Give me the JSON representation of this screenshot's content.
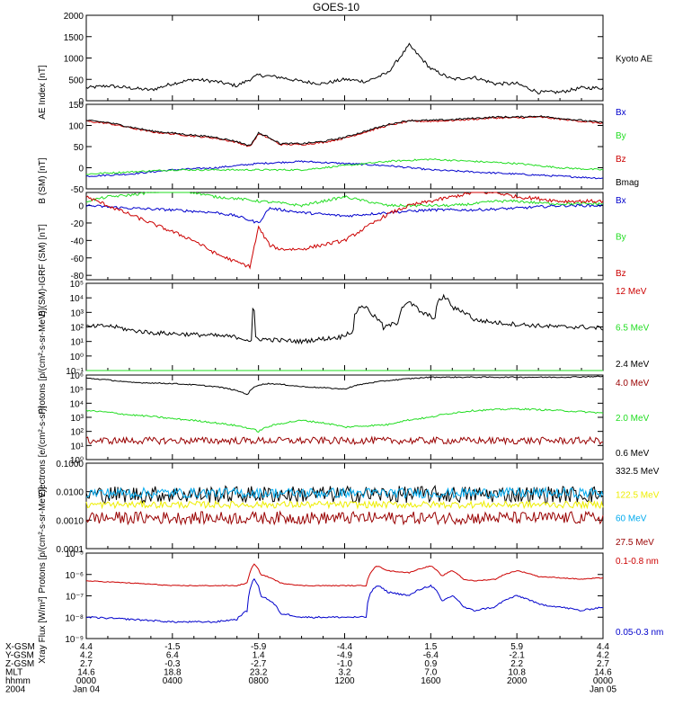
{
  "title": "GOES-10",
  "x_axis": {
    "range_hours": [
      0,
      24
    ],
    "ticks": [
      0,
      4,
      8,
      12,
      16,
      20,
      24
    ],
    "rows": [
      {
        "label": "X-GSM",
        "values": [
          "4.4",
          "-1.5",
          "-5.9",
          "-4.4",
          "1.5",
          "5.9",
          "4.4"
        ]
      },
      {
        "label": "Y-GSM",
        "values": [
          "4.2",
          "6.4",
          "1.4",
          "-4.9",
          "-6.4",
          "-2.1",
          "4.2"
        ]
      },
      {
        "label": "Z-GSM",
        "values": [
          "2.7",
          "-0.3",
          "-2.7",
          "-1.0",
          "0.9",
          "2.2",
          "2.7"
        ]
      },
      {
        "label": "MLT",
        "values": [
          "14.6",
          "18.8",
          "23.2",
          "3.2",
          "7.0",
          "10.8",
          "14.6"
        ]
      },
      {
        "label": "hhmm",
        "values": [
          "0000",
          "0400",
          "0800",
          "1200",
          "1600",
          "2000",
          "0000"
        ]
      },
      {
        "label": "2004",
        "values": [
          "Jan 04",
          "",
          "",
          "",
          "",
          "",
          "Jan 05"
        ]
      }
    ]
  },
  "colors": {
    "black": "#000000",
    "red": "#cc0000",
    "green": "#22dd22",
    "blue": "#0000cc",
    "darkred": "#990000",
    "cyan": "#00aaee",
    "yellow": "#eeee00"
  },
  "chart_data": [
    {
      "type": "line",
      "ylabel": "AE Index [nT]",
      "ylim": [
        0,
        2000
      ],
      "yticks": [
        0,
        500,
        1000,
        1500,
        2000
      ],
      "yticklabels": [
        "0",
        "500",
        "1000",
        "1500",
        "2000"
      ],
      "series": [
        {
          "name": "Kyoto AE",
          "color": "#000000",
          "noise": 40,
          "x": [
            0,
            1,
            2,
            3,
            4,
            5,
            6,
            7,
            8,
            9,
            10,
            11,
            12,
            13,
            14,
            15,
            16,
            17,
            18,
            19,
            20,
            21,
            22,
            23,
            24
          ],
          "values": [
            300,
            350,
            300,
            250,
            400,
            500,
            450,
            350,
            600,
            550,
            450,
            400,
            500,
            450,
            650,
            1300,
            750,
            500,
            550,
            400,
            400,
            200,
            200,
            300,
            300
          ]
        }
      ]
    },
    {
      "type": "line",
      "ylabel": "B (SM) [nT]",
      "ylim": [
        -50,
        150
      ],
      "yticks": [
        -50,
        0,
        50,
        100,
        150
      ],
      "yticklabels": [
        "-50",
        "0",
        "50",
        "100",
        "150"
      ],
      "series": [
        {
          "name": "Bx",
          "color": "#0000cc",
          "noise": 2,
          "x": [
            0,
            2,
            4,
            6,
            8,
            10,
            12,
            14,
            16,
            18,
            20,
            22,
            24
          ],
          "values": [
            -20,
            -15,
            -5,
            0,
            10,
            15,
            10,
            5,
            -5,
            -10,
            -15,
            -20,
            -25
          ]
        },
        {
          "name": "By",
          "color": "#22dd22",
          "noise": 2,
          "x": [
            0,
            2,
            4,
            6,
            8,
            10,
            12,
            14,
            16,
            18,
            20,
            22,
            24
          ],
          "values": [
            -15,
            -10,
            -5,
            -5,
            -5,
            -5,
            5,
            15,
            20,
            15,
            10,
            0,
            -5
          ]
        },
        {
          "name": "Bz",
          "color": "#cc0000",
          "noise": 2,
          "x": [
            0,
            1,
            2,
            3,
            4,
            5,
            6,
            7,
            7.6,
            8,
            8.5,
            9,
            10,
            11,
            12,
            13,
            14,
            15,
            16,
            17,
            18,
            19,
            20,
            21,
            22,
            23,
            24
          ],
          "values": [
            110,
            105,
            95,
            85,
            80,
            75,
            70,
            60,
            50,
            80,
            70,
            55,
            55,
            60,
            70,
            85,
            100,
            110,
            110,
            112,
            115,
            118,
            118,
            120,
            115,
            110,
            105
          ]
        },
        {
          "name": "Bmag",
          "color": "#000000",
          "noise": 2,
          "x": [
            0,
            1,
            2,
            3,
            4,
            5,
            6,
            7,
            7.6,
            8,
            8.5,
            9,
            10,
            11,
            12,
            13,
            14,
            15,
            16,
            17,
            18,
            19,
            20,
            21,
            22,
            23,
            24
          ],
          "values": [
            112,
            107,
            97,
            87,
            82,
            77,
            72,
            62,
            52,
            82,
            72,
            57,
            57,
            62,
            72,
            87,
            102,
            112,
            112,
            114,
            117,
            120,
            120,
            122,
            117,
            112,
            107
          ]
        }
      ]
    },
    {
      "type": "line",
      "ylabel": "B (SM)-IGRF (SM) [nT]",
      "ylim": [
        -85,
        15
      ],
      "yticks": [
        -80,
        -60,
        -40,
        -20,
        0
      ],
      "yticklabels": [
        "-80",
        "-60",
        "-40",
        "-20",
        "0"
      ],
      "series": [
        {
          "name": "Bx",
          "color": "#0000cc",
          "noise": 1.5,
          "x": [
            0,
            2,
            4,
            6,
            7,
            8,
            8.5,
            10,
            12,
            14,
            16,
            18,
            20,
            22,
            24
          ],
          "values": [
            0,
            -3,
            -5,
            -8,
            -12,
            -20,
            -3,
            -8,
            -12,
            -8,
            -5,
            -5,
            -3,
            0,
            0
          ]
        },
        {
          "name": "By",
          "color": "#22dd22",
          "noise": 1.5,
          "x": [
            0,
            1,
            2,
            3,
            4,
            5,
            6,
            7,
            8,
            9,
            10,
            11,
            12,
            13,
            14,
            15,
            16,
            17,
            18,
            19,
            20,
            21,
            22,
            23,
            24
          ],
          "values": [
            5,
            10,
            12,
            15,
            18,
            15,
            10,
            8,
            5,
            3,
            0,
            5,
            10,
            5,
            0,
            0,
            0,
            0,
            2,
            5,
            5,
            3,
            2,
            2,
            2
          ]
        },
        {
          "name": "Bz",
          "color": "#cc0000",
          "noise": 2,
          "x": [
            0,
            1,
            2,
            3,
            4,
            5,
            6,
            7,
            7.6,
            8,
            8.5,
            9,
            10,
            11,
            12,
            13,
            14,
            15,
            16,
            17,
            18,
            19,
            20,
            21,
            22,
            23,
            24
          ],
          "values": [
            10,
            0,
            -10,
            -20,
            -30,
            -40,
            -55,
            -65,
            -70,
            -25,
            -45,
            -50,
            -50,
            -45,
            -40,
            -25,
            -10,
            0,
            5,
            10,
            15,
            15,
            10,
            8,
            5,
            5,
            5
          ]
        }
      ]
    },
    {
      "type": "line",
      "log": true,
      "ylabel": "Protons [p/(cm²-s-sr-MeV)]",
      "ylim": [
        0.1,
        100000
      ],
      "yticks": [
        0.1,
        1,
        10,
        100,
        1000,
        10000,
        100000
      ],
      "yticklabels": [
        "10⁻¹",
        "10⁰",
        "10¹",
        "10²",
        "10³",
        "10⁴",
        "10⁵"
      ],
      "series": [
        {
          "name": "12 MeV",
          "color": "#cc0000",
          "noise": 0,
          "x": [
            0,
            24
          ],
          "values": [
            0.1,
            0.1
          ]
        },
        {
          "name": "6.5 MeV",
          "color": "#22dd22",
          "noise": 0,
          "x": [
            0,
            24
          ],
          "values": [
            0.1,
            0.1
          ]
        },
        {
          "name": "2.4 MeV",
          "color": "#000000",
          "noise": 0.15,
          "x": [
            0,
            1,
            2,
            3,
            4,
            5,
            6,
            7,
            7.7,
            7.75,
            7.85,
            8,
            9,
            10,
            11,
            11.8,
            12.4,
            12.8,
            13.3,
            13.8,
            14.5,
            14.9,
            15.5,
            15.8,
            16.2,
            16.6,
            17,
            18,
            19,
            20,
            21,
            22,
            23,
            24
          ],
          "values": [
            100,
            120,
            60,
            40,
            35,
            30,
            25,
            20,
            10,
            2000,
            20,
            15,
            12,
            10,
            15,
            20,
            50,
            3000,
            600,
            80,
            200,
            5000,
            1000,
            700,
            400,
            12000,
            2000,
            300,
            200,
            150,
            120,
            100,
            100,
            80
          ]
        }
      ]
    },
    {
      "type": "line",
      "log": true,
      "ylabel": "Electrons [e/(cm²-s-sr)]",
      "ylim": [
        1,
        1000000
      ],
      "yticks": [
        1,
        10,
        100,
        1000,
        10000,
        100000,
        1000000
      ],
      "yticklabels": [
        "10⁰",
        "10¹",
        "10²",
        "10³",
        "10⁴",
        "10⁵",
        "10⁶"
      ],
      "series": [
        {
          "name": "4.0 MeV",
          "color": "#990000",
          "noise": 0.25,
          "x": [
            0,
            24
          ],
          "values": [
            22,
            22
          ]
        },
        {
          "name": "2.0 MeV",
          "color": "#22dd22",
          "noise": 0.06,
          "x": [
            0,
            2,
            4,
            6,
            8,
            10,
            12,
            14,
            16,
            18,
            20,
            22,
            24
          ],
          "values": [
            3000,
            1500,
            800,
            400,
            100,
            600,
            200,
            300,
            1000,
            3000,
            4000,
            3000,
            2000
          ]
        },
        {
          "name": "0.6 MeV",
          "color": "#000000",
          "noise": 0.04,
          "x": [
            0,
            2,
            4,
            6,
            7.5,
            8,
            8.5,
            10,
            12,
            14,
            16,
            18,
            20,
            22,
            24
          ],
          "values": [
            600000,
            300000,
            250000,
            150000,
            40000,
            200000,
            250000,
            150000,
            100000,
            400000,
            700000,
            700000,
            700000,
            700000,
            800000
          ]
        }
      ]
    },
    {
      "type": "line",
      "log": true,
      "ylabel": "Protons [p/(cm²-s-sr-MeV)]",
      "ylim": [
        0.0001,
        0.1
      ],
      "yticks": [
        0.0001,
        0.001,
        0.01,
        0.1
      ],
      "yticklabels": [
        "0.0001",
        "0.0010",
        "0.0100",
        "0.1000"
      ],
      "series": [
        {
          "name": "332.5 MeV",
          "color": "#000000",
          "noise": 0.3,
          "x": [
            0,
            24
          ],
          "values": [
            0.008,
            0.008
          ]
        },
        {
          "name": "122.5 MeV",
          "color": "#eeee00",
          "noise": 0.12,
          "x": [
            0,
            24
          ],
          "values": [
            0.0035,
            0.0035
          ]
        },
        {
          "name": "60 MeV",
          "color": "#00aaee",
          "noise": 0.18,
          "x": [
            0,
            24
          ],
          "values": [
            0.009,
            0.009
          ]
        },
        {
          "name": "27.5 MeV",
          "color": "#990000",
          "noise": 0.22,
          "x": [
            0,
            24
          ],
          "values": [
            0.0012,
            0.0012
          ]
        }
      ]
    },
    {
      "type": "line",
      "log": true,
      "ylabel": "Xray Flux [W/m²]",
      "ylim": [
        1e-09,
        1e-05
      ],
      "yticks": [
        1e-09,
        1e-08,
        1e-07,
        1e-06,
        1e-05
      ],
      "yticklabels": [
        "10⁻⁹",
        "10⁻⁸",
        "10⁻⁷",
        "10⁻⁶",
        "10⁻⁵"
      ],
      "series": [
        {
          "name": "0.1-0.8 nm",
          "color": "#cc0000",
          "noise": 0.02,
          "x": [
            0,
            2,
            4,
            6,
            7,
            7.5,
            7.8,
            8.1,
            9,
            10,
            12,
            13,
            13.5,
            14,
            15,
            16,
            16.5,
            17,
            17.5,
            18,
            19,
            20,
            21,
            22,
            23,
            24
          ],
          "values": [
            5e-07,
            4e-07,
            3e-07,
            3e-07,
            3e-07,
            4e-07,
            3e-06,
            1e-06,
            4e-07,
            3e-07,
            3e-07,
            3e-07,
            2.5e-06,
            1.5e-06,
            1.2e-06,
            2.5e-06,
            8e-07,
            1.5e-06,
            6e-07,
            5e-07,
            6e-07,
            1.5e-06,
            8e-07,
            7e-07,
            6e-07,
            7e-07
          ]
        },
        {
          "name": "0.05-0.3 nm",
          "color": "#0000cc",
          "noise": 0.04,
          "x": [
            0,
            2,
            4,
            6,
            7,
            7.5,
            7.8,
            8.1,
            9,
            10,
            12,
            13,
            13.5,
            14,
            15,
            16,
            16.5,
            17,
            17.5,
            18,
            19,
            20,
            21,
            22,
            23,
            24
          ],
          "values": [
            1e-08,
            8e-09,
            6e-09,
            6e-09,
            8e-09,
            2e-08,
            6e-07,
            1e-07,
            1.5e-08,
            1e-08,
            1e-08,
            1e-08,
            3e-07,
            1.5e-07,
            1e-07,
            3e-07,
            5e-08,
            1e-07,
            3e-08,
            2e-08,
            3e-08,
            1e-07,
            4e-08,
            3e-08,
            2e-08,
            3e-08
          ]
        }
      ]
    }
  ]
}
